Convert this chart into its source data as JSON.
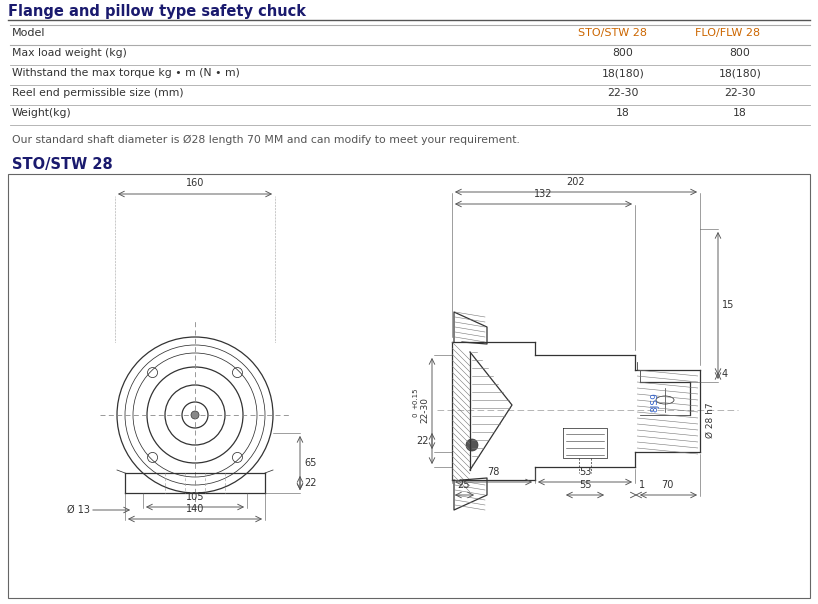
{
  "title": "Flange and pillow type safety chuck",
  "subtitle": "STO/STW 28",
  "table_headers": [
    "Model",
    "STO/STW 28",
    "FLO/FLW 28"
  ],
  "table_rows": [
    [
      "Max load weight (kg)",
      "800",
      "800"
    ],
    [
      "Withstand the max torque kg • m (N • m)",
      "18(180)",
      "18(180)"
    ],
    [
      "Reel end permissible size (mm)",
      "22-30",
      "22-30"
    ],
    [
      "Weight(kg)",
      "18",
      "18"
    ]
  ],
  "note": "Our standard shaft diameter is Ø28 length 70 MM and can modify to meet your requirement.",
  "title_color": "#1a1a6e",
  "subtitle_color": "#1a1a6e",
  "note_color": "#555555",
  "bg_color": "#ffffff",
  "table_line_color": "#aaaaaa",
  "drawing_color": "#333333",
  "dim_color": "#555555",
  "header_col_color": "#cc6600"
}
